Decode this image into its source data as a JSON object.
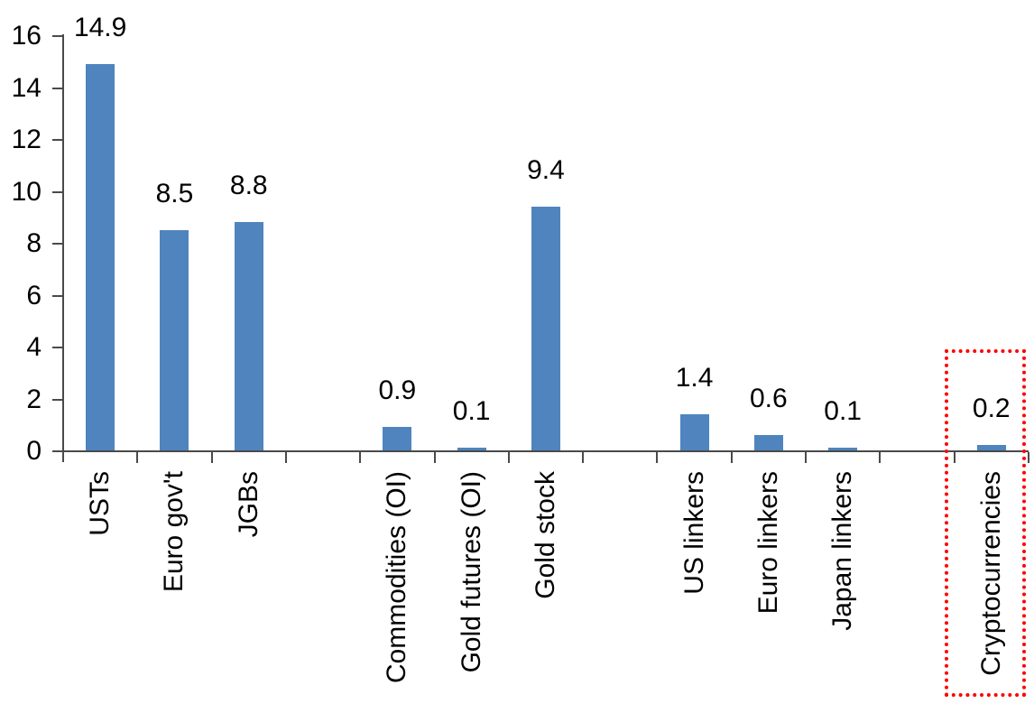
{
  "chart_data": {
    "type": "bar",
    "title": "",
    "xlabel": "",
    "ylabel": "",
    "categories": [
      "USTs",
      "Euro gov't",
      "JGBs",
      "Commodities (OI)",
      "Gold futures (OI)",
      "Gold stock",
      "US linkers",
      "Euro linkers",
      "Japan linkers",
      "Cryptocurrencies"
    ],
    "values": [
      14.9,
      8.5,
      8.8,
      0.9,
      0.1,
      9.4,
      1.4,
      0.6,
      0.1,
      0.2
    ],
    "data_labels": [
      "14.9",
      "8.5",
      "8.8",
      "0.9",
      "0.1",
      "9.4",
      "1.4",
      "0.6",
      "0.1",
      "0.2"
    ],
    "slot_indices": [
      0,
      1,
      2,
      4,
      5,
      6,
      8,
      9,
      10,
      12
    ],
    "total_slots": 13,
    "y_ticks": [
      0,
      2,
      4,
      6,
      8,
      10,
      12,
      14,
      16
    ],
    "ylim": [
      0,
      16
    ],
    "grid": false,
    "legend": false,
    "label_rotation_degrees": 90,
    "bar_color": "#4F84BF",
    "axis_color": "#4A4A4A",
    "text_color": "#000000",
    "highlight": {
      "category": "Cryptocurrencies",
      "style": "red-dotted-rectangle",
      "color": "#FF0000"
    }
  }
}
